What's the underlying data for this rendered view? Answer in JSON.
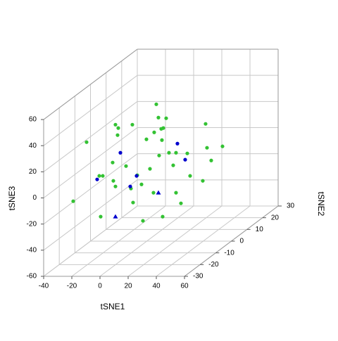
{
  "chart_data": {
    "type": "scatter3d",
    "xlabel": "tSNE1",
    "ylabel": "tSNE2",
    "zlabel": "tSNE3",
    "xlim": [
      -40,
      60
    ],
    "ylim": [
      -30,
      30
    ],
    "zlim": [
      -60,
      60
    ],
    "xticks": [
      -40,
      -20,
      0,
      20,
      40,
      60
    ],
    "yticks": [
      -30,
      -20,
      -10,
      0,
      10,
      20,
      30
    ],
    "zticks": [
      -60,
      -40,
      -20,
      0,
      20,
      40,
      60
    ],
    "grid": true,
    "series": [
      {
        "color": "#33c233",
        "marker": "circle",
        "x": [
          -20.6,
          -30.1,
          -11.6,
          -9.1,
          -0.1,
          1.9,
          1.4,
          11.9,
          -1.6,
          -0.1,
          7.4,
          10.9,
          -2.1,
          -10.6,
          12.4,
          19.4,
          15.4,
          24.4,
          18.4,
          26.9,
          28.9,
          30.4,
          27.4,
          33.9,
          32.4,
          32.9,
          35.9,
          30.9,
          37.9,
          42.9,
          40.9,
          33.4,
          42.9,
          46.4,
          50.9,
          52.9,
          61.9,
          63.9,
          64.9,
          67.9,
          75.9,
          21.9
        ],
        "y": [
          -20,
          -20,
          -20,
          -20,
          -20,
          -20,
          -20,
          -20,
          -20,
          -20,
          -20,
          -20,
          -20,
          -20,
          -20,
          -20,
          -20,
          -20,
          -20,
          -20,
          -20,
          -20,
          -20,
          -20,
          -20,
          -20,
          -20,
          -20,
          -20,
          -20,
          -20,
          -20,
          -20,
          -20,
          -20,
          -20,
          -20,
          -20,
          -20,
          -20,
          -20,
          -20
        ],
        "z": [
          33.7,
          -11.5,
          7.9,
          7.9,
          47.1,
          44.5,
          39.1,
          47.1,
          4.1,
          -0.2,
          15.4,
          -1.8,
          18.1,
          -23.3,
          -12.5,
          -26.5,
          8.4,
          13.3,
          1.4,
          -5.0,
          62.7,
          52.5,
          41.2,
          44.5,
          43.9,
          35.3,
          52.0,
          23.5,
          25.6,
          25.6,
          16.0,
          -23.3,
          -5.0,
          -13.1,
          25.1,
          7.9,
          4.1,
          47.7,
          29.4,
          19.7,
          30.5,
          35.9
        ]
      },
      {
        "color": "#0000cd",
        "marker": "circle",
        "x": [
          -13.1,
          3.4,
          14.9,
          10.4,
          43.9,
          49.4
        ],
        "y": [
          -20,
          -20,
          -20,
          -20,
          -20,
          -20
        ],
        "z": [
          5.2,
          25.6,
          7.9,
          -0.2,
          32.6,
          20.3
        ]
      },
      {
        "color": "#0000cd",
        "marker": "triangle",
        "x": [
          -0.1,
          30.4
        ],
        "y": [
          -20,
          -20
        ],
        "z": [
          -23.3,
          -5.0
        ]
      }
    ]
  }
}
